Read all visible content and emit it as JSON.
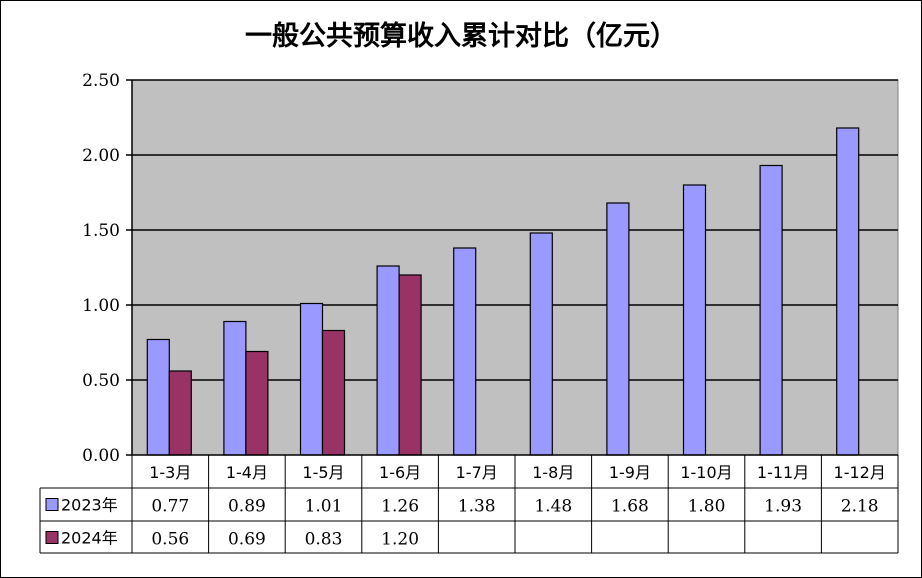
{
  "chart_data": {
    "type": "bar",
    "title": "一般公共预算收入累计对比（亿元）",
    "categories": [
      "1-3月",
      "1-4月",
      "1-5月",
      "1-6月",
      "1-7月",
      "1-8月",
      "1-9月",
      "1-10月",
      "1-11月",
      "1-12月"
    ],
    "series": [
      {
        "name": "2023年",
        "color": "#9999ff",
        "values": [
          0.77,
          0.89,
          1.01,
          1.26,
          1.38,
          1.48,
          1.68,
          1.8,
          1.93,
          2.18
        ]
      },
      {
        "name": "2024年",
        "color": "#993366",
        "values": [
          0.56,
          0.69,
          0.83,
          1.2,
          null,
          null,
          null,
          null,
          null,
          null
        ]
      }
    ],
    "ylim": [
      0,
      2.5
    ],
    "yticks": [
      "0.00",
      "0.50",
      "1.00",
      "1.50",
      "2.00",
      "2.50"
    ],
    "plot_background": "#c0c0c0",
    "grid": true,
    "legend": "data-table",
    "data_table": true
  }
}
